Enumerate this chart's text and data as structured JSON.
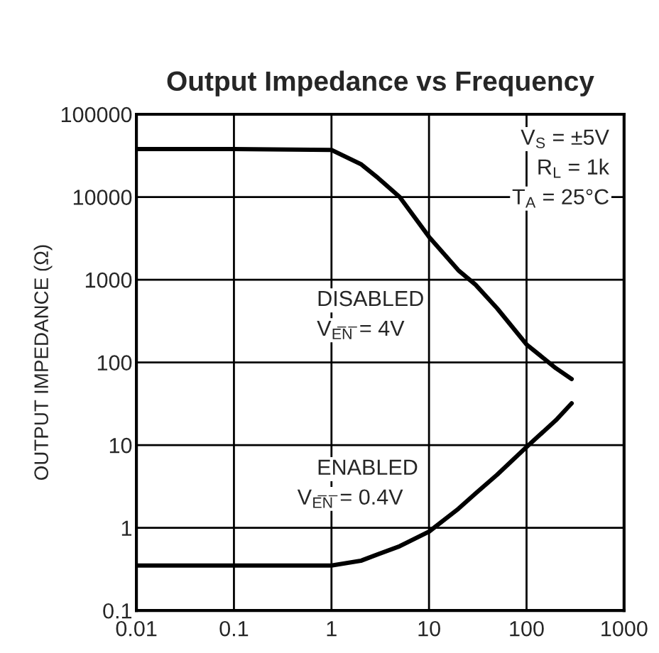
{
  "chart_data": {
    "type": "line",
    "title": "Output Impedance vs Frequency",
    "ylabel": "OUTPUT IMPEDANCE (Ω)",
    "series": [
      {
        "color": "#000000",
        "x": [
          0.01,
          0.1,
          1,
          2,
          3,
          5,
          10,
          20,
          30,
          50,
          100,
          200,
          290
        ],
        "values": [
          38000,
          38000,
          37000,
          25000,
          17000,
          10000,
          3300,
          1300,
          870,
          450,
          165,
          85,
          63
        ]
      },
      {
        "color": "#000000",
        "x": [
          0.01,
          0.1,
          1,
          2,
          3,
          5,
          10,
          20,
          30,
          50,
          100,
          200,
          290
        ],
        "values": [
          0.35,
          0.35,
          0.35,
          0.4,
          0.48,
          0.6,
          0.9,
          1.7,
          2.6,
          4.4,
          9.5,
          20,
          32
        ]
      }
    ],
    "annotations": [
      "V$_{S}$ = ±5V",
      "R$_{L}$ = 1k",
      "T$_{A}$ = 25°C",
      "DISABLED",
      "V$_{E̅N̅}$ = 4V",
      "ENABLED",
      "V$_{E̅N̅}$ = 0.4V"
    ],
    "log": "xy",
    "xlim": [
      0.01,
      1000
    ],
    "ylim": [
      0.1,
      100000
    ],
    "xticks": [
      0.01,
      0.1,
      1,
      10,
      100,
      1000
    ],
    "yticks": [
      0.1,
      1,
      10,
      100,
      1000,
      10000,
      100000
    ],
    "grid": true,
    "line_style": "solid",
    "marker": "none"
  }
}
